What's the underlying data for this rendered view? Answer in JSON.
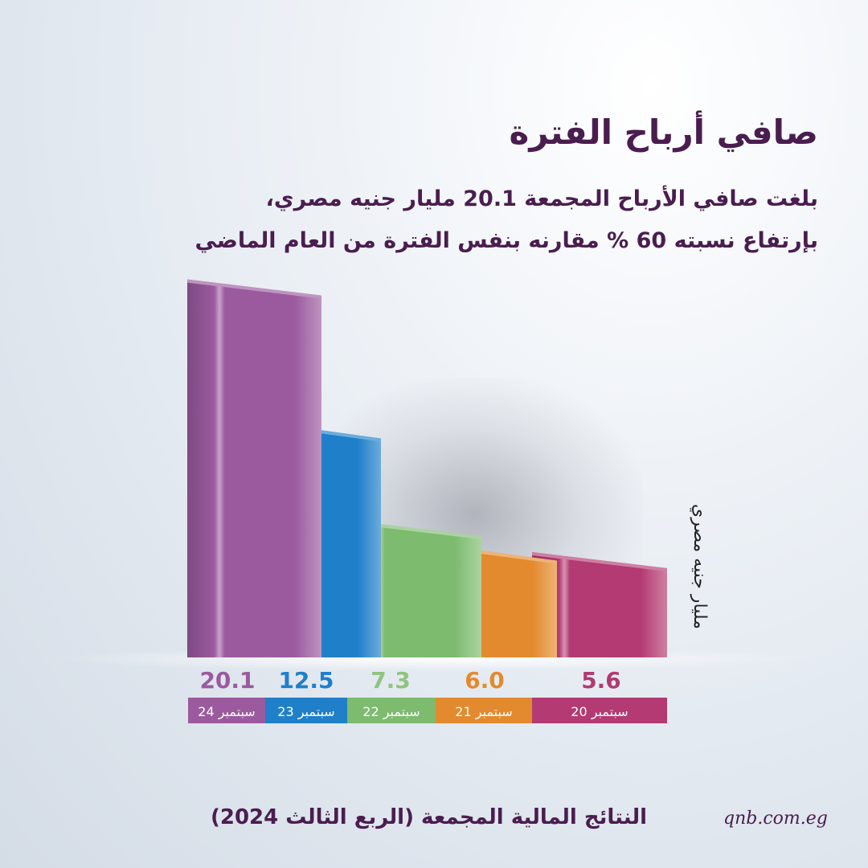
{
  "header": {
    "title": "صافي أرباح الفترة",
    "subtitle_line1": "بلغت صافي الأرباح المجمعة 20.1 مليار جنيه مصري،",
    "subtitle_line2": "بإرتفاع نسبته 60 % مقارنه بنفس الفترة من العام الماضي"
  },
  "chart_data": {
    "type": "bar",
    "categories": [
      "سبتمبر 24",
      "سبتمبر 23",
      "سبتمبر 22",
      "سبتمبر 21",
      "سبتمبر 20"
    ],
    "values": [
      20.1,
      12.5,
      7.3,
      6.0,
      5.6
    ],
    "value_labels": [
      "20.1",
      "12.5",
      "7.3",
      "6.0",
      "5.6"
    ],
    "ylabel": "مليار جنيه مصري",
    "colors": [
      "#9b5a9e",
      "#1f7fc9",
      "#7dbb6e",
      "#e38a2e",
      "#b33a72"
    ],
    "label_colors": [
      "#9b5a9e",
      "#1f7fc9",
      "#8fc47f",
      "#e38a2e",
      "#b03a72"
    ],
    "grid": false
  },
  "footer": {
    "title": "النتائج المالية المجمعة (الربع الثالث 2024)",
    "url": "qnb.com.eg"
  }
}
